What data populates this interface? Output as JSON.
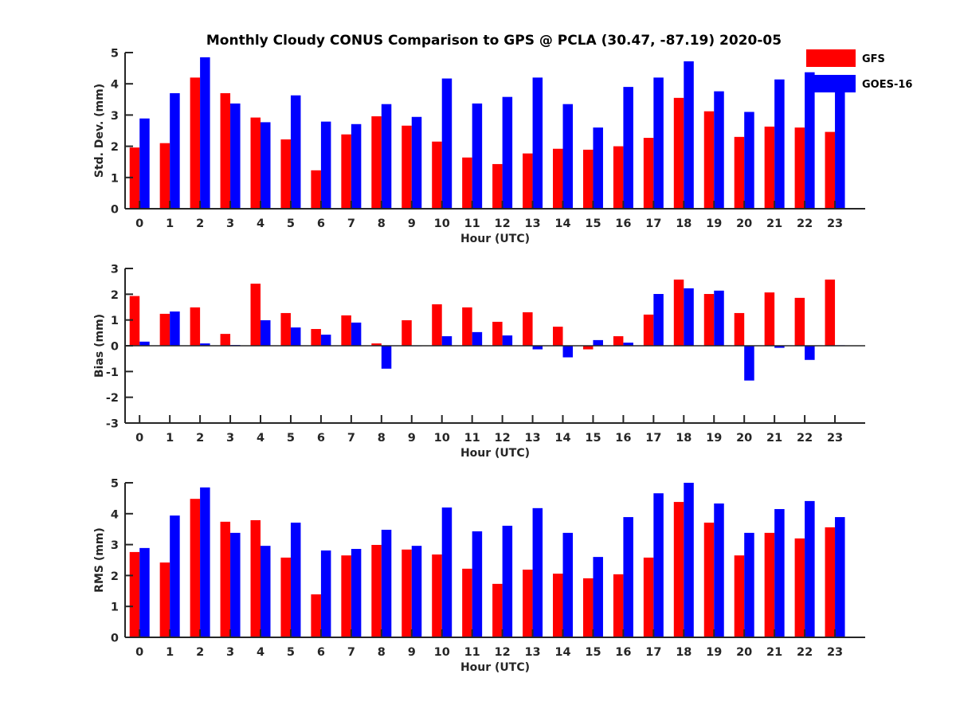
{
  "title": "Monthly Cloudy CONUS Comparison to GPS @ PCLA (30.47, -87.19) 2020-05",
  "colors": {
    "GFS": "#ff0000",
    "GOES-16": "#0000ff"
  },
  "legend": {
    "items": [
      "GFS",
      "GOES-16"
    ],
    "placement": "top-right"
  },
  "chart_data": [
    {
      "type": "bar",
      "title": "Monthly Cloudy CONUS Comparison to GPS @ PCLA (30.47, -87.19) 2020-05",
      "xlabel": "Hour (UTC)",
      "ylabel": "Std. Dev. (mm)",
      "ylim": [
        0,
        5
      ],
      "yticks": [
        0,
        1,
        2,
        3,
        4,
        5
      ],
      "categories": [
        "0",
        "1",
        "2",
        "3",
        "4",
        "5",
        "6",
        "7",
        "8",
        "9",
        "10",
        "11",
        "12",
        "13",
        "14",
        "15",
        "16",
        "17",
        "18",
        "19",
        "20",
        "21",
        "22",
        "23"
      ],
      "series": [
        {
          "name": "GFS",
          "values": [
            1.96,
            2.1,
            4.2,
            3.7,
            2.92,
            2.22,
            1.23,
            2.38,
            2.96,
            2.66,
            2.15,
            1.64,
            1.43,
            1.77,
            1.92,
            1.89,
            2.0,
            2.27,
            3.55,
            3.12,
            2.3,
            2.63,
            2.6,
            2.46
          ]
        },
        {
          "name": "GOES-16",
          "values": [
            2.89,
            3.7,
            4.85,
            3.37,
            2.77,
            3.63,
            2.79,
            2.71,
            3.35,
            2.94,
            4.17,
            3.37,
            3.58,
            4.2,
            3.35,
            2.6,
            3.9,
            4.2,
            4.72,
            3.76,
            3.1,
            4.14,
            4.37,
            4.0
          ]
        }
      ],
      "legend": "top-right",
      "grid": false
    },
    {
      "type": "bar",
      "title": "",
      "xlabel": "Hour (UTC)",
      "ylabel": "Bias (mm)",
      "ylim": [
        -3,
        3
      ],
      "yticks": [
        -3,
        -2,
        -1,
        0,
        1,
        2,
        3
      ],
      "categories": [
        "0",
        "1",
        "2",
        "3",
        "4",
        "5",
        "6",
        "7",
        "8",
        "9",
        "10",
        "11",
        "12",
        "13",
        "14",
        "15",
        "16",
        "17",
        "18",
        "19",
        "20",
        "21",
        "22",
        "23"
      ],
      "series": [
        {
          "name": "GFS",
          "values": [
            1.93,
            1.24,
            1.49,
            0.46,
            2.41,
            1.27,
            0.65,
            1.18,
            0.09,
            0.99,
            1.61,
            1.49,
            0.93,
            1.3,
            0.74,
            -0.14,
            0.37,
            1.21,
            2.57,
            2.01,
            1.27,
            2.07,
            1.86,
            2.57
          ]
        },
        {
          "name": "GOES-16",
          "values": [
            0.16,
            1.33,
            0.09,
            0.03,
            0.99,
            0.71,
            0.43,
            0.9,
            -0.89,
            0.0,
            0.37,
            0.53,
            0.4,
            -0.14,
            -0.45,
            0.22,
            0.12,
            2.01,
            2.23,
            2.14,
            -1.35,
            -0.08,
            -0.55,
            0.02
          ]
        }
      ],
      "grid": false
    },
    {
      "type": "bar",
      "title": "",
      "xlabel": "Hour (UTC)",
      "ylabel": "RMS (mm)",
      "ylim": [
        0,
        5
      ],
      "yticks": [
        0,
        1,
        2,
        3,
        4,
        5
      ],
      "categories": [
        "0",
        "1",
        "2",
        "3",
        "4",
        "5",
        "6",
        "7",
        "8",
        "9",
        "10",
        "11",
        "12",
        "13",
        "14",
        "15",
        "16",
        "17",
        "18",
        "19",
        "20",
        "21",
        "22",
        "23"
      ],
      "series": [
        {
          "name": "GFS",
          "values": [
            2.76,
            2.42,
            4.48,
            3.74,
            3.79,
            2.58,
            1.39,
            2.65,
            2.99,
            2.84,
            2.68,
            2.22,
            1.73,
            2.19,
            2.06,
            1.91,
            2.04,
            2.58,
            4.38,
            3.71,
            2.65,
            3.38,
            3.2,
            3.56
          ]
        },
        {
          "name": "GOES-16",
          "values": [
            2.89,
            3.94,
            4.85,
            3.38,
            2.96,
            3.71,
            2.81,
            2.86,
            3.48,
            2.96,
            4.2,
            3.43,
            3.61,
            4.18,
            3.38,
            2.6,
            3.89,
            4.66,
            5.0,
            4.33,
            3.38,
            4.15,
            4.41,
            3.89
          ]
        }
      ],
      "grid": false
    }
  ]
}
